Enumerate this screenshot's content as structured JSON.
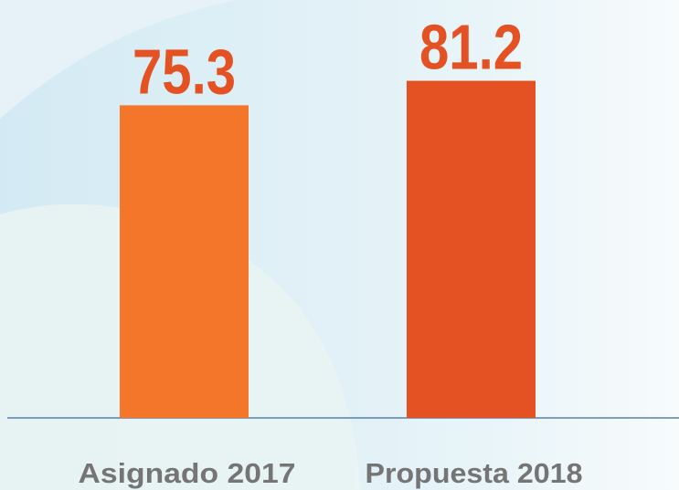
{
  "chart_data": {
    "type": "bar",
    "categories": [
      "Asignado 2017",
      "Propuesta 2018"
    ],
    "values": [
      75.3,
      81.2
    ],
    "colors": [
      "#f4762a",
      "#e45223"
    ],
    "ylim": [
      0,
      100
    ]
  }
}
